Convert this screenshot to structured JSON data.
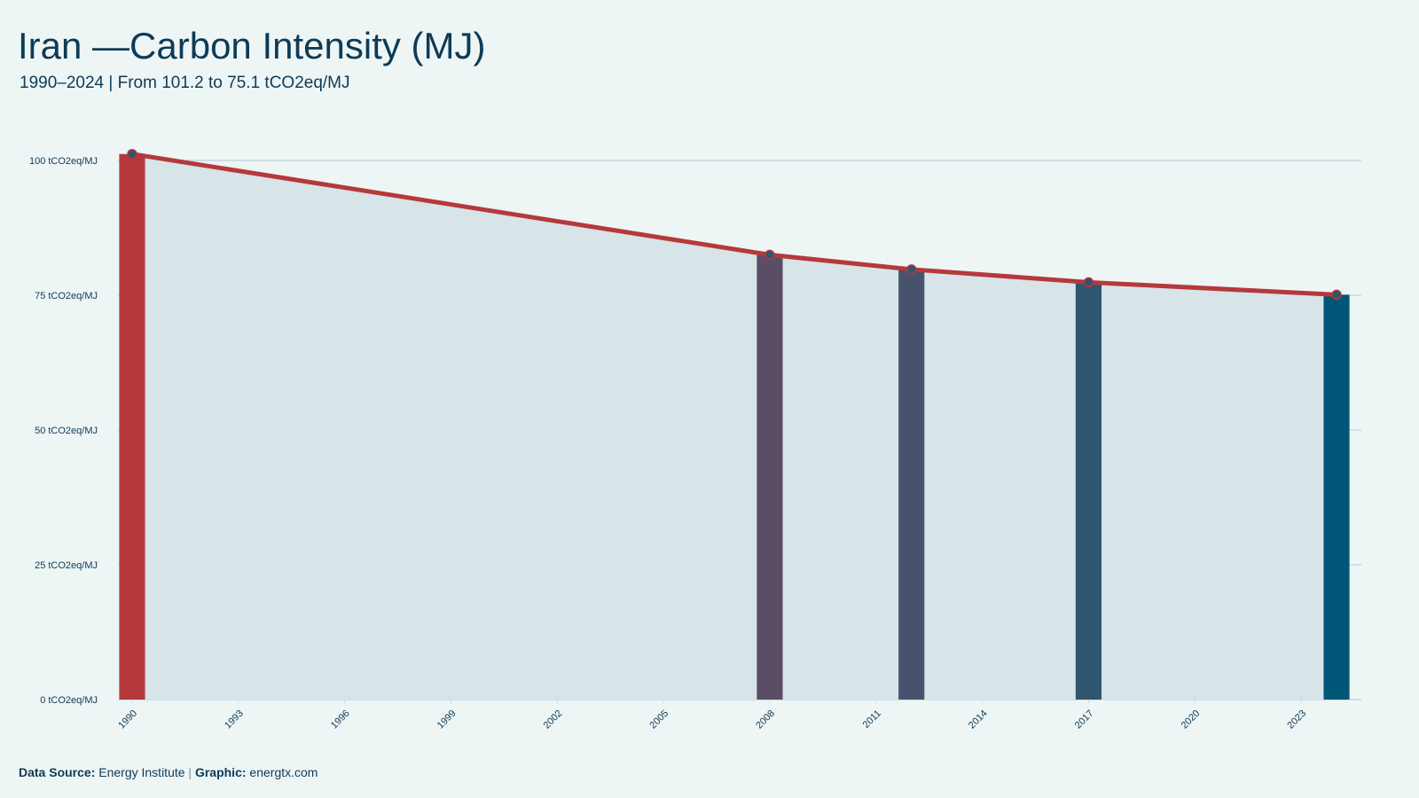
{
  "chart_data": {
    "type": "line",
    "title": "Iran —Carbon Intensity (MJ)",
    "subtitle": "1990–2024 | From 101.2 to 75.1 tCO2eq/MJ",
    "x": [
      1990,
      2008,
      2012,
      2017,
      2024
    ],
    "series": [
      {
        "name": "Carbon Intensity",
        "color": "#b5393b",
        "values": [
          101.2,
          82.5,
          79.8,
          77.4,
          75.1
        ],
        "bar_colors": [
          "#b5393b",
          "#5a4e66",
          "#48526c",
          "#2f556f",
          "#005677"
        ]
      }
    ],
    "area_color": "#d7e4e8",
    "xlim": [
      1989.6,
      2024.7
    ],
    "xticks": [
      1990,
      1993,
      1996,
      1999,
      2002,
      2005,
      2008,
      2011,
      2014,
      2017,
      2020,
      2023
    ],
    "ylim": [
      0,
      100
    ],
    "yticks": [
      {
        "value": 0,
        "label": "0 tCO2eq/MJ"
      },
      {
        "value": 25,
        "label": "25 tCO2eq/MJ"
      },
      {
        "value": 50,
        "label": "50 tCO2eq/MJ"
      },
      {
        "value": 75,
        "label": "75 tCO2eq/MJ"
      },
      {
        "value": 100,
        "label": "100 tCO2eq/MJ"
      }
    ],
    "grid": true,
    "source_label": "Data Source:",
    "source": "Energy Institute",
    "separator": "|",
    "credit_label": "Graphic:",
    "credit": "energtx.com"
  }
}
